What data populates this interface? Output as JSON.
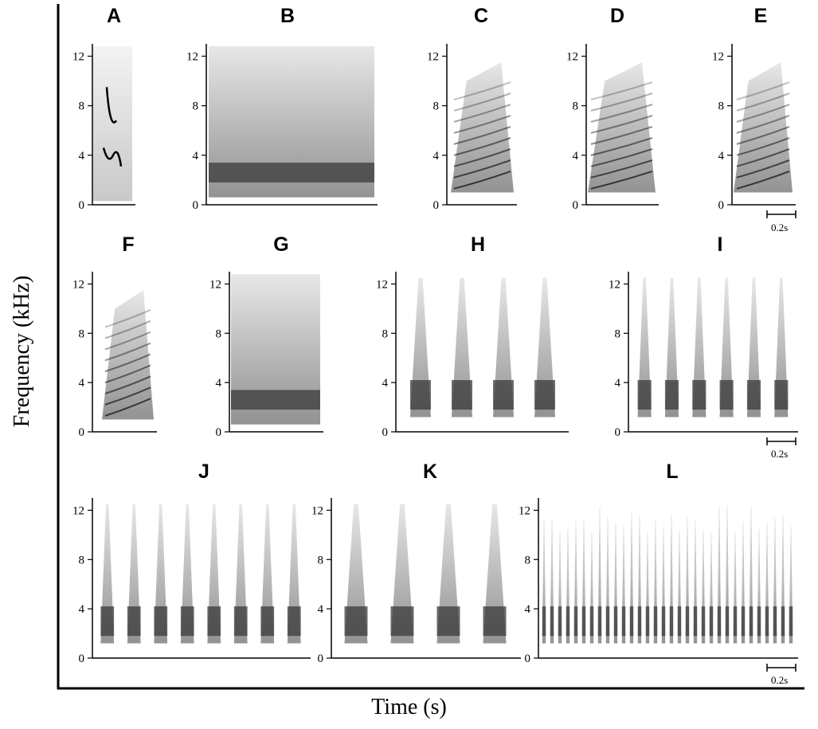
{
  "y_axis_label": "Frequency (kHz)",
  "x_axis_label": "Time (s)",
  "y_ticks": [
    "0",
    "4",
    "8",
    "12"
  ],
  "scale_bar_label": "0.2s",
  "panels": [
    {
      "label": "A",
      "row": 1,
      "pattern": "tonal"
    },
    {
      "label": "B",
      "row": 1,
      "pattern": "noisy-block"
    },
    {
      "label": "C",
      "row": 1,
      "pattern": "harmonic-stack"
    },
    {
      "label": "D",
      "row": 1,
      "pattern": "harmonic-stack"
    },
    {
      "label": "E",
      "row": 1,
      "pattern": "harmonic-stack"
    },
    {
      "label": "F",
      "row": 2,
      "pattern": "harmonic-stack"
    },
    {
      "label": "G",
      "row": 2,
      "pattern": "noisy-block"
    },
    {
      "label": "H",
      "row": 2,
      "pattern": "pulse-train",
      "notes": 4
    },
    {
      "label": "I",
      "row": 2,
      "pattern": "pulse-train",
      "notes": 6
    },
    {
      "label": "J",
      "row": 3,
      "pattern": "pulse-train",
      "notes": 8
    },
    {
      "label": "K",
      "row": 3,
      "pattern": "pulse-train",
      "notes": 4
    },
    {
      "label": "L",
      "row": 3,
      "pattern": "rapid-pulses",
      "notes": 32
    }
  ],
  "colors": {
    "ink": "#000000",
    "spectrogram": "#3a3a3a",
    "background": "#ffffff"
  }
}
